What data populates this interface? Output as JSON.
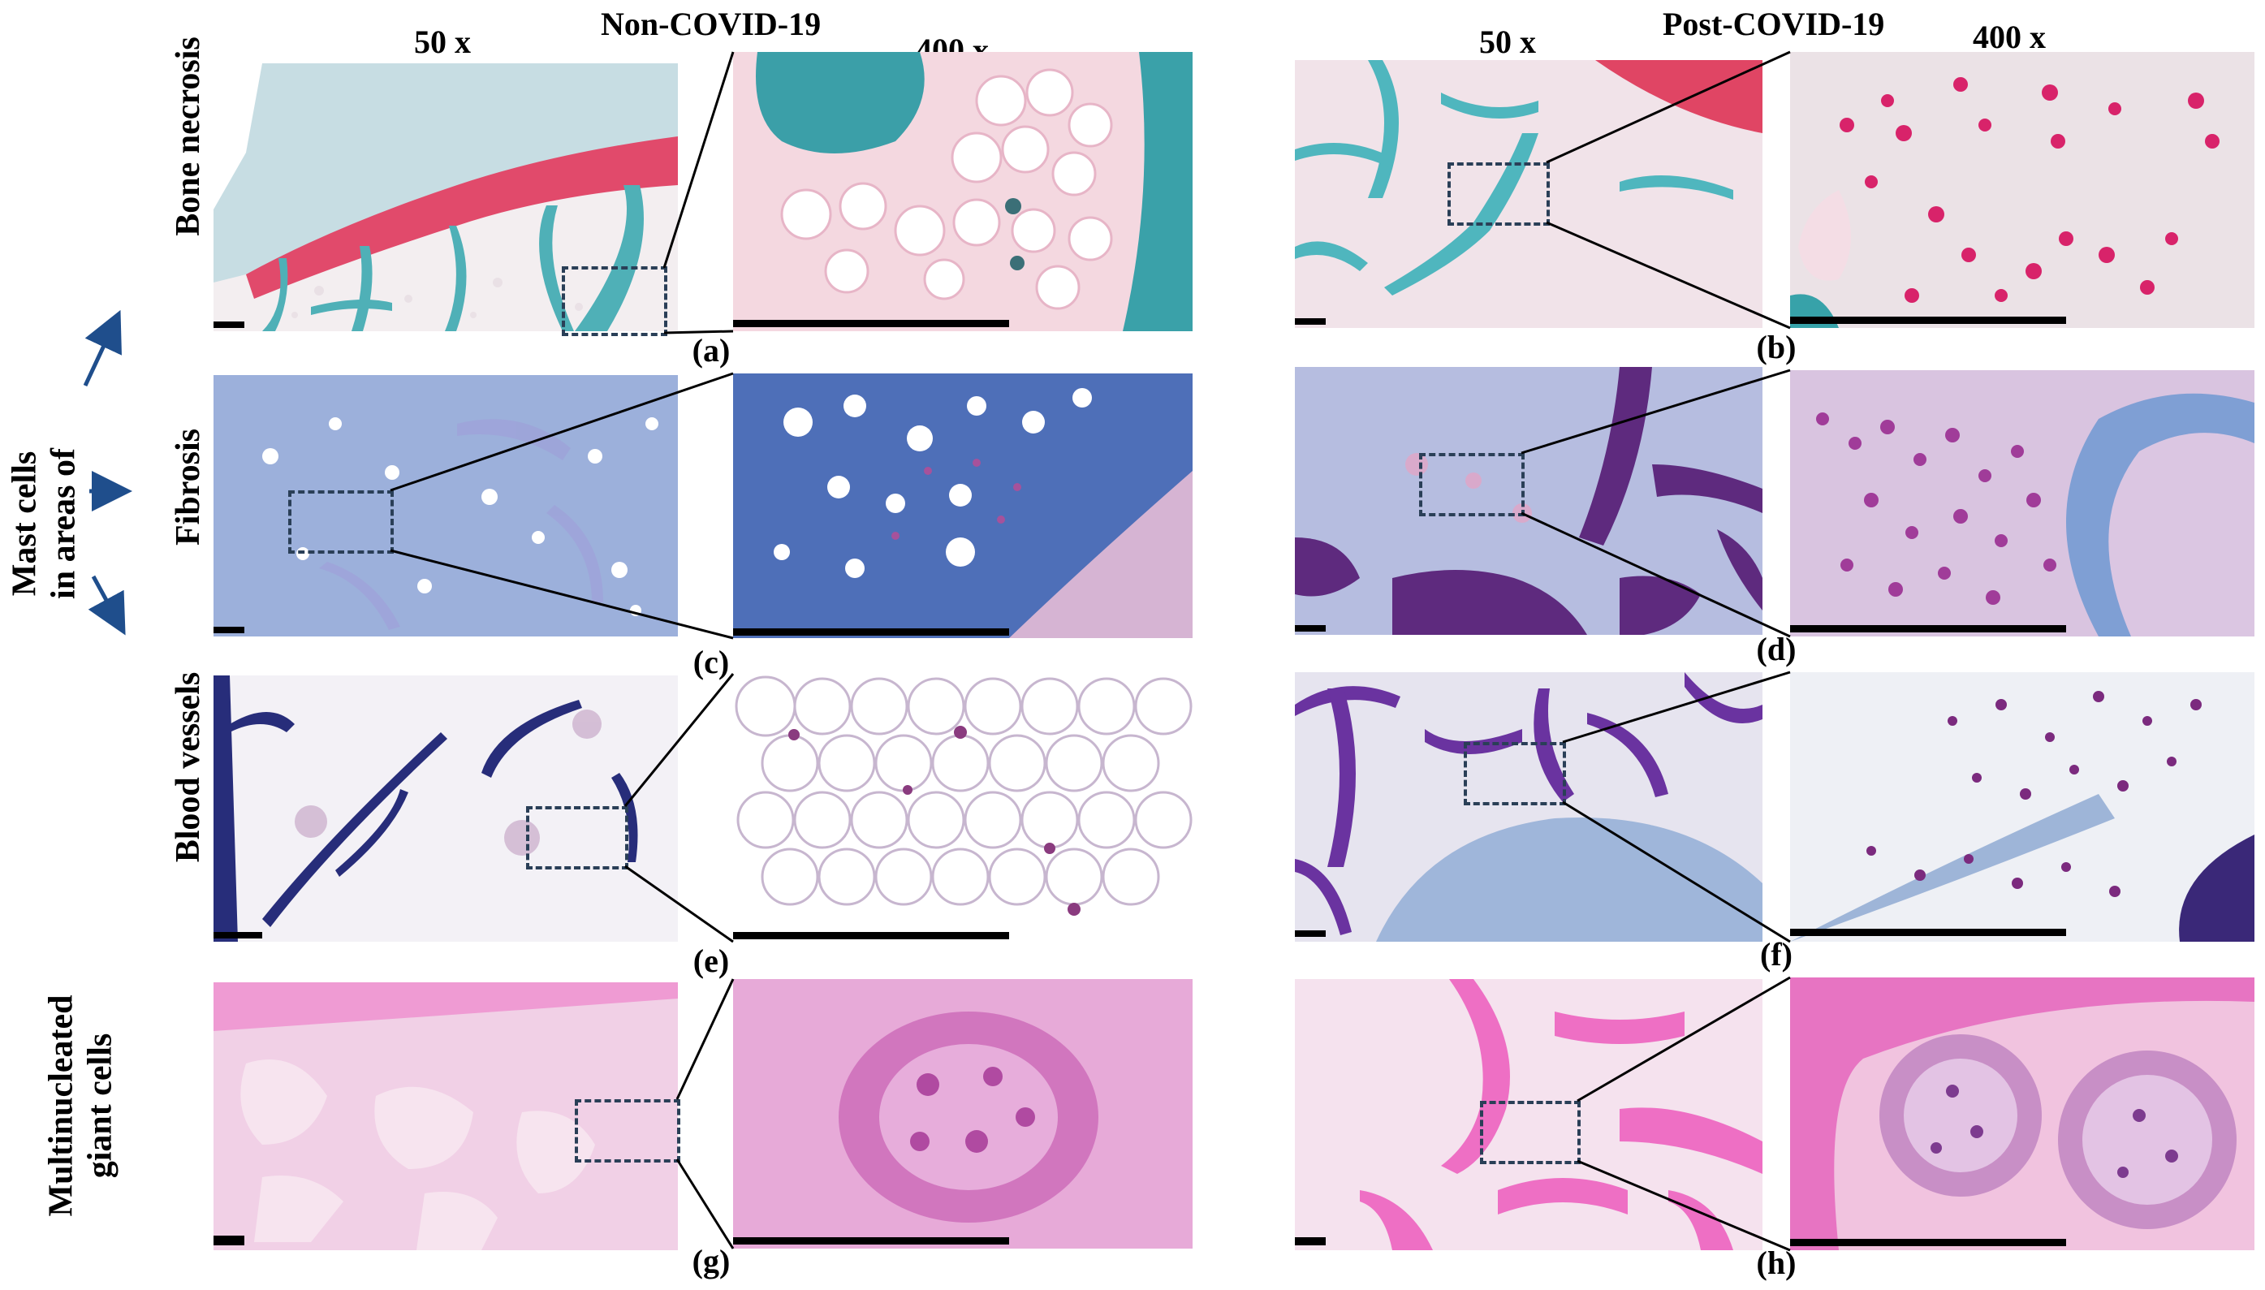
{
  "headers": {
    "left_group": "Non-COVID-19",
    "right_group": "Post-COVID-19",
    "mag_low_left": "50 x",
    "mag_high_left": "400 x",
    "mag_low_right": "50 x",
    "mag_high_right": "400 x"
  },
  "side_label": {
    "line1": "Mast cells",
    "line2": "in areas of"
  },
  "rows": [
    {
      "label": "Bone necrosis"
    },
    {
      "label": "Fibrosis"
    },
    {
      "label": "Blood vessels"
    },
    {
      "label_line1": "Multinucleated",
      "label_line2": "giant cells"
    }
  ],
  "captions": [
    "(a)",
    "(b)",
    "(c)",
    "(d)",
    "(e)",
    "(f)",
    "(g)",
    "(h)"
  ],
  "colors": {
    "stain_pink": "#e8a6c0",
    "stain_teal": "#3aa8b0",
    "stain_blue": "#6f8fc8",
    "stain_purple": "#6b2f8f",
    "he_pink": "#e29ad0",
    "box_dash": "#2a3f57",
    "arrow": "#1f4e8c"
  }
}
